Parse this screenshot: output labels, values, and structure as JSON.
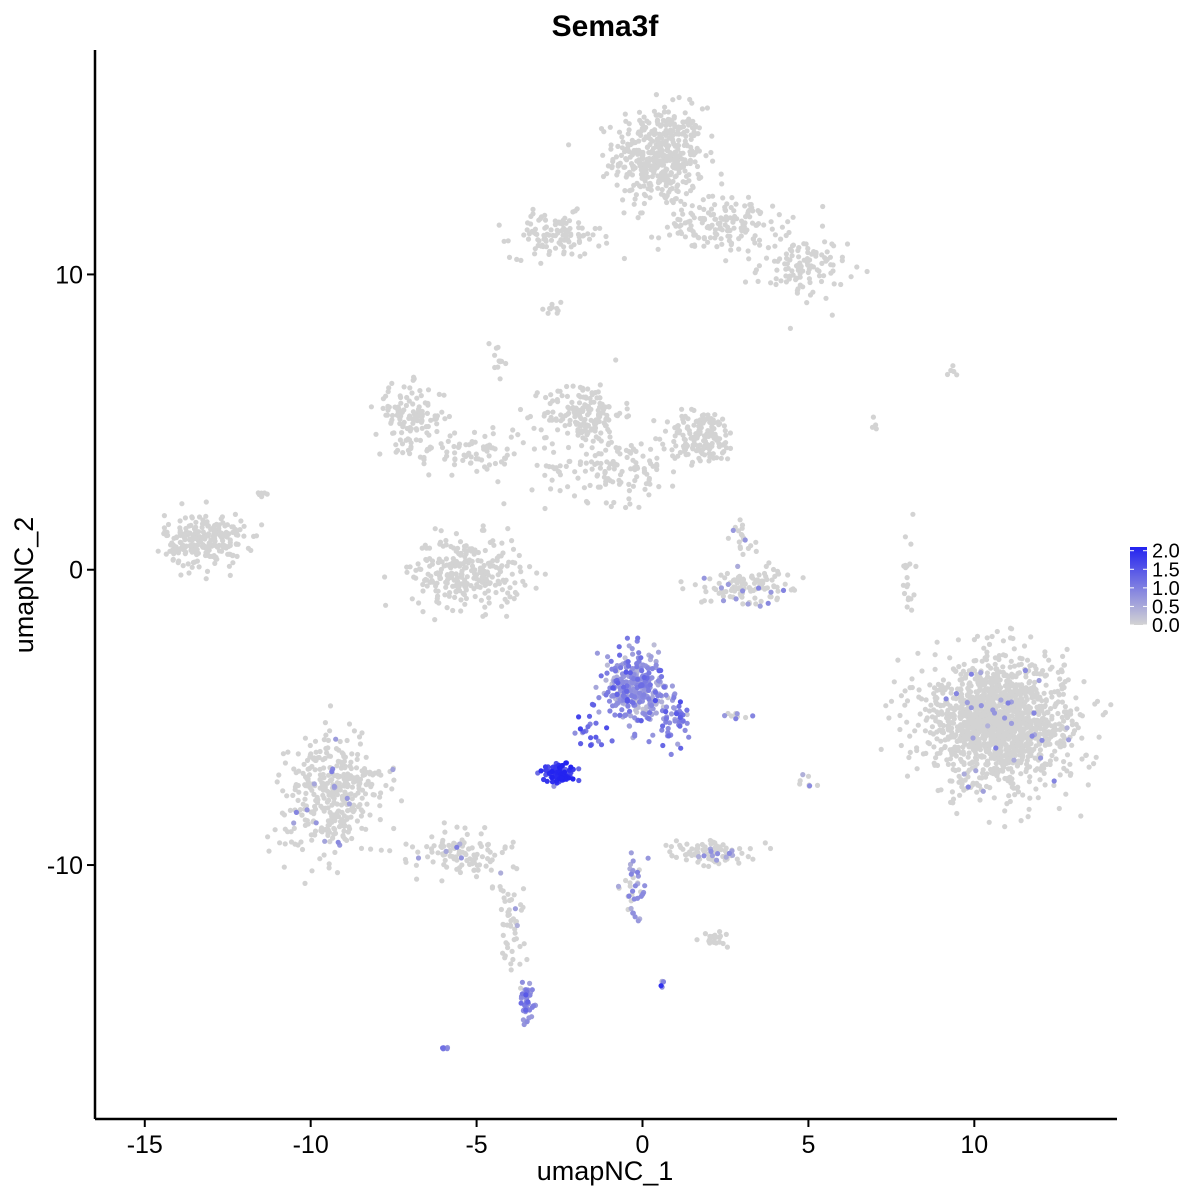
{
  "chart_data": {
    "type": "scatter",
    "title": "Sema3f",
    "xlabel": "umapNC_1",
    "ylabel": "umapNC_2",
    "xlim": [
      -16.5,
      14.3
    ],
    "ylim": [
      -18.6,
      17.6
    ],
    "xticks": [
      -15,
      -10,
      -5,
      0,
      5,
      10
    ],
    "xtick_labels": [
      "-15",
      "-10",
      "-5",
      "0",
      "5",
      "10"
    ],
    "yticks": [
      -10,
      0,
      10
    ],
    "ytick_labels": [
      "-10",
      "0",
      "10"
    ],
    "grid": false,
    "legend": {
      "placement": "right",
      "type": "colorbar",
      "min": 0,
      "max": 2.1,
      "low_color": "#d3d3d3",
      "high_color": "#2323f0",
      "ticks": [
        0.0,
        0.5,
        1.0,
        1.5,
        2.0
      ],
      "tick_labels": [
        "0.0",
        "0.5",
        "1.0",
        "1.5",
        "2.0"
      ]
    },
    "clusters": [
      {
        "cx": 0.5,
        "cy": 14.0,
        "sx": 0.9,
        "sy": 1.1,
        "n": 450,
        "expr": 0
      },
      {
        "cx": 2.5,
        "cy": 11.7,
        "sx": 1.3,
        "sy": 0.6,
        "n": 160,
        "expr": 0
      },
      {
        "cx": 4.8,
        "cy": 10.2,
        "sx": 0.9,
        "sy": 0.7,
        "n": 110,
        "expr": 0
      },
      {
        "cx": -2.6,
        "cy": 11.3,
        "sx": 0.9,
        "sy": 0.5,
        "n": 110,
        "expr": 0
      },
      {
        "cx": -1.8,
        "cy": 5.3,
        "sx": 0.8,
        "sy": 0.7,
        "n": 170,
        "expr": 0
      },
      {
        "cx": 1.8,
        "cy": 4.5,
        "sx": 0.7,
        "sy": 0.6,
        "n": 150,
        "expr": 0
      },
      {
        "cx": -0.8,
        "cy": 3.5,
        "sx": 1.4,
        "sy": 0.8,
        "n": 140,
        "expr": 0
      },
      {
        "cx": -7.0,
        "cy": 5.2,
        "sx": 0.7,
        "sy": 0.7,
        "n": 120,
        "expr": 0
      },
      {
        "cx": -5.2,
        "cy": 4.0,
        "sx": 1.2,
        "sy": 0.6,
        "n": 80,
        "expr": 0
      },
      {
        "cx": -5.3,
        "cy": -0.1,
        "sx": 1.1,
        "sy": 0.8,
        "n": 280,
        "expr": 0
      },
      {
        "cx": -13.2,
        "cy": 1.0,
        "sx": 0.8,
        "sy": 0.6,
        "n": 240,
        "expr": 0
      },
      {
        "cx": 3.2,
        "cy": -0.6,
        "sx": 1.0,
        "sy": 0.4,
        "n": 120,
        "expr": 0.05
      },
      {
        "cx": 10.7,
        "cy": -5.1,
        "sx": 1.4,
        "sy": 1.4,
        "n": 1500,
        "expr": 0.01
      },
      {
        "cx": -9.3,
        "cy": -7.6,
        "sx": 1.0,
        "sy": 1.3,
        "n": 380,
        "expr": 0.02
      },
      {
        "cx": -5.5,
        "cy": -9.6,
        "sx": 1.0,
        "sy": 0.5,
        "n": 110,
        "expr": 0.03
      },
      {
        "cx": -4.0,
        "cy": -12.0,
        "sx": 0.25,
        "sy": 1.2,
        "n": 55,
        "expr": 0.05
      },
      {
        "cx": -3.5,
        "cy": -14.6,
        "sx": 0.2,
        "sy": 0.5,
        "n": 40,
        "expr": 0.8
      },
      {
        "cx": -0.2,
        "cy": -4.0,
        "sx": 0.6,
        "sy": 0.8,
        "n": 320,
        "expr": 0.7
      },
      {
        "cx": 1.0,
        "cy": -5.1,
        "sx": 0.3,
        "sy": 0.6,
        "n": 50,
        "expr": 0.9
      },
      {
        "cx": -2.5,
        "cy": -6.9,
        "sx": 0.3,
        "sy": 0.2,
        "n": 120,
        "expr": 1.7
      },
      {
        "cx": -1.6,
        "cy": -5.6,
        "sx": 0.3,
        "sy": 0.5,
        "n": 22,
        "expr": 1.2
      },
      {
        "cx": 2.2,
        "cy": -9.6,
        "sx": 0.8,
        "sy": 0.3,
        "n": 90,
        "expr": 0.05
      },
      {
        "cx": 2.3,
        "cy": -12.5,
        "sx": 0.3,
        "sy": 0.2,
        "n": 20,
        "expr": 0
      },
      {
        "cx": -0.3,
        "cy": -10.8,
        "sx": 0.3,
        "sy": 0.8,
        "n": 40,
        "expr": 0.3
      },
      {
        "cx": 8.0,
        "cy": -0.2,
        "sx": 0.2,
        "sy": 0.8,
        "n": 20,
        "expr": 0
      },
      {
        "cx": 3.0,
        "cy": 1.0,
        "sx": 0.3,
        "sy": 0.5,
        "n": 20,
        "expr": 0.1
      },
      {
        "cx": -4.3,
        "cy": 7.2,
        "sx": 0.2,
        "sy": 0.3,
        "n": 12,
        "expr": 0
      },
      {
        "cx": -2.7,
        "cy": 8.9,
        "sx": 0.2,
        "sy": 0.2,
        "n": 10,
        "expr": 0
      },
      {
        "cx": 5.0,
        "cy": -7.3,
        "sx": 0.2,
        "sy": 0.3,
        "n": 8,
        "expr": 0.2
      },
      {
        "cx": 2.9,
        "cy": -4.9,
        "sx": 0.3,
        "sy": 0.15,
        "n": 10,
        "expr": 0.2
      },
      {
        "cx": 0.6,
        "cy": -14.0,
        "sx": 0.1,
        "sy": 0.1,
        "n": 5,
        "expr": 1.0
      },
      {
        "cx": -5.9,
        "cy": -16.2,
        "sx": 0.1,
        "sy": 0.1,
        "n": 5,
        "expr": 0.8
      },
      {
        "cx": 9.5,
        "cy": 6.7,
        "sx": 0.2,
        "sy": 0.1,
        "n": 5,
        "expr": 0
      },
      {
        "cx": 7.0,
        "cy": 4.8,
        "sx": 0.1,
        "sy": 0.4,
        "n": 4,
        "expr": 0
      },
      {
        "cx": -11.4,
        "cy": 2.6,
        "sx": 0.15,
        "sy": 0.2,
        "n": 6,
        "expr": 0
      }
    ]
  }
}
